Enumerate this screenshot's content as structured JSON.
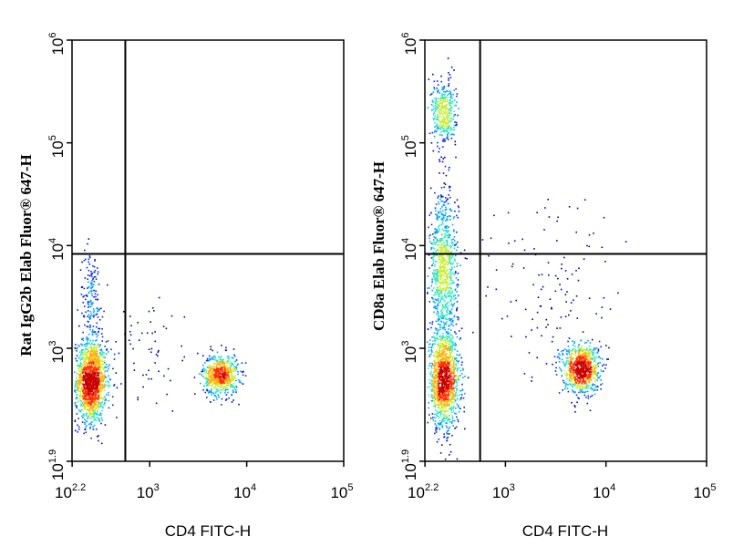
{
  "chart_data": [
    {
      "type": "scatter",
      "subtype": "density-dot-plot",
      "xlabel": "CD4 FITC-H",
      "ylabel": "Rat IgG2b Elab Fluor® 647-H",
      "x_scale": "log",
      "y_scale": "log",
      "xlim": [
        158,
        100000
      ],
      "ylim": [
        79.4,
        1000000
      ],
      "x_ticks": [
        {
          "base": "10",
          "exp": "2.2"
        },
        {
          "base": "10",
          "exp": "3"
        },
        {
          "base": "10",
          "exp": "4"
        },
        {
          "base": "10",
          "exp": "5"
        }
      ],
      "y_ticks": [
        {
          "base": "10",
          "exp": "1.9"
        },
        {
          "base": "10",
          "exp": "3"
        },
        {
          "base": "10",
          "exp": "4"
        },
        {
          "base": "10",
          "exp": "5"
        },
        {
          "base": "10",
          "exp": "6"
        }
      ],
      "gates": {
        "x": 560,
        "y": 8300
      },
      "populations": [
        {
          "center": [
            245,
            480
          ],
          "spread": [
            0.08,
            0.2
          ],
          "count": 1400
        },
        {
          "center": [
            5300,
            560
          ],
          "spread": [
            0.09,
            0.1
          ],
          "count": 650
        },
        {
          "center": [
            245,
            3000
          ],
          "spread": [
            0.06,
            0.25
          ],
          "count": 170
        },
        {
          "center": [
            900,
            900
          ],
          "spread": [
            0.25,
            0.3
          ],
          "count": 70
        }
      ]
    },
    {
      "type": "scatter",
      "subtype": "density-dot-plot",
      "xlabel": "CD4 FITC-H",
      "ylabel": "CD8a Elab Fluor® 647-H",
      "x_scale": "log",
      "y_scale": "log",
      "xlim": [
        158,
        100000
      ],
      "ylim": [
        79.4,
        1000000
      ],
      "x_ticks": [
        {
          "base": "10",
          "exp": "2.2"
        },
        {
          "base": "10",
          "exp": "3"
        },
        {
          "base": "10",
          "exp": "4"
        },
        {
          "base": "10",
          "exp": "5"
        }
      ],
      "y_ticks": [
        {
          "base": "10",
          "exp": "1.9"
        },
        {
          "base": "10",
          "exp": "3"
        },
        {
          "base": "10",
          "exp": "4"
        },
        {
          "base": "10",
          "exp": "5"
        },
        {
          "base": "10",
          "exp": "6"
        }
      ],
      "gates": {
        "x": 560,
        "y": 8300
      },
      "populations": [
        {
          "center": [
            240,
            480
          ],
          "spread": [
            0.08,
            0.22
          ],
          "count": 1250
        },
        {
          "center": [
            240,
            5500
          ],
          "spread": [
            0.07,
            0.4
          ],
          "count": 900
        },
        {
          "center": [
            240,
            200000
          ],
          "spread": [
            0.06,
            0.16
          ],
          "count": 380
        },
        {
          "center": [
            5600,
            650
          ],
          "spread": [
            0.09,
            0.12
          ],
          "count": 850
        },
        {
          "center": [
            3000,
            3500
          ],
          "spread": [
            0.35,
            0.45
          ],
          "count": 120
        }
      ]
    }
  ],
  "colors": {
    "axis": "#000000",
    "density_scale": [
      "#0000a0",
      "#0028e0",
      "#00a0ff",
      "#30e6c0",
      "#c8ee30",
      "#ffb000",
      "#ff3000",
      "#c80000"
    ]
  }
}
